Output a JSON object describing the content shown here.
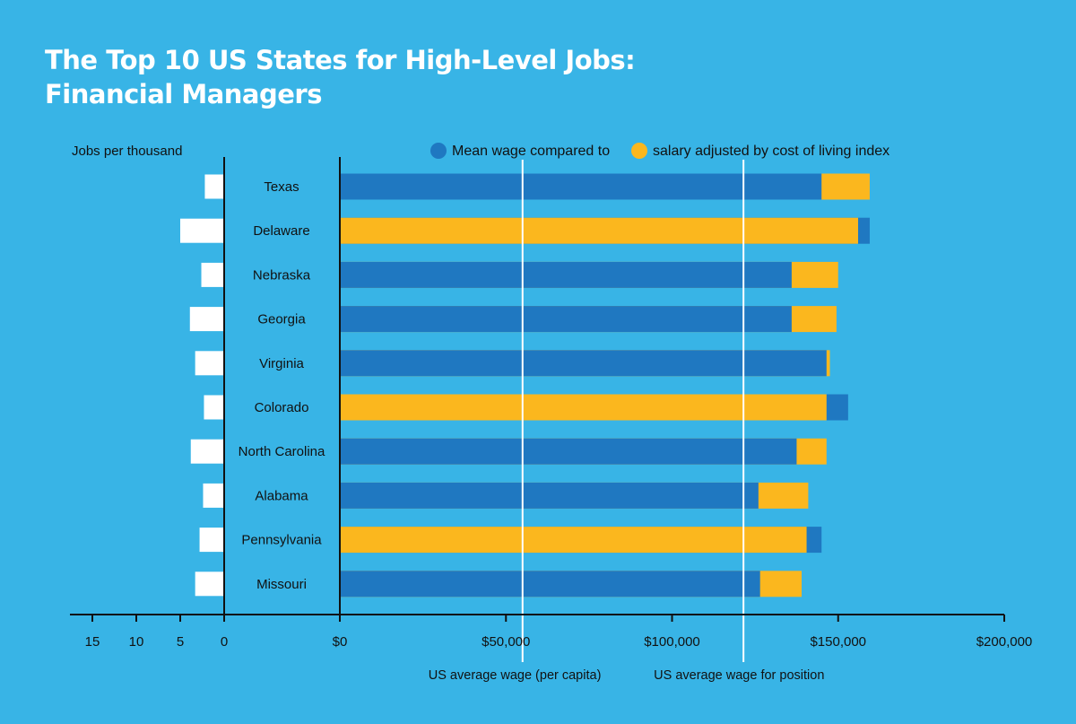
{
  "title": {
    "line1": "The Top 10 US States for High-Level Jobs:",
    "line2": "Financial Managers"
  },
  "colors": {
    "background": "#38b4e6",
    "mean_wage": "#1f78c1",
    "adjusted_salary": "#fbb71e",
    "jobs_bar": "#ffffff",
    "reference_line": "#ffffff",
    "axis": "#111111"
  },
  "chart_data": {
    "type": "bar",
    "orientation": "horizontal",
    "categories": [
      "Texas",
      "Delaware",
      "Nebraska",
      "Georgia",
      "Virginia",
      "Colorado",
      "North Carolina",
      "Alabama",
      "Pennsylvania",
      "Missouri"
    ],
    "left_panel": {
      "label": "Jobs per thousand",
      "values": [
        2.2,
        5.0,
        2.6,
        3.9,
        3.3,
        2.3,
        3.8,
        2.4,
        2.8,
        3.3
      ],
      "ticks": [
        15,
        10,
        5,
        0
      ],
      "xlim": [
        0,
        17
      ]
    },
    "legend": {
      "mean_label": "Mean wage compared to",
      "adjusted_label": "salary adjusted by cost of living index"
    },
    "series": [
      {
        "name": "Mean wage",
        "values": [
          145000,
          159500,
          136000,
          136000,
          146500,
          153000,
          137500,
          126000,
          145000,
          126500
        ]
      },
      {
        "name": "salary adjusted by cost of living index",
        "values": [
          159500,
          156000,
          150000,
          149500,
          147500,
          146500,
          146500,
          141000,
          140500,
          139000
        ]
      }
    ],
    "xlim": [
      0,
      200000
    ],
    "ticks": [
      "$0",
      "$50,000",
      "$100,000",
      "$150,000",
      "$200,000"
    ],
    "tick_values": [
      0,
      50000,
      100000,
      150000,
      200000
    ],
    "reference_lines": [
      {
        "label": "US average wage (per capita)",
        "value": 55000
      },
      {
        "label": "US average wage for position",
        "value": 121500
      }
    ]
  }
}
